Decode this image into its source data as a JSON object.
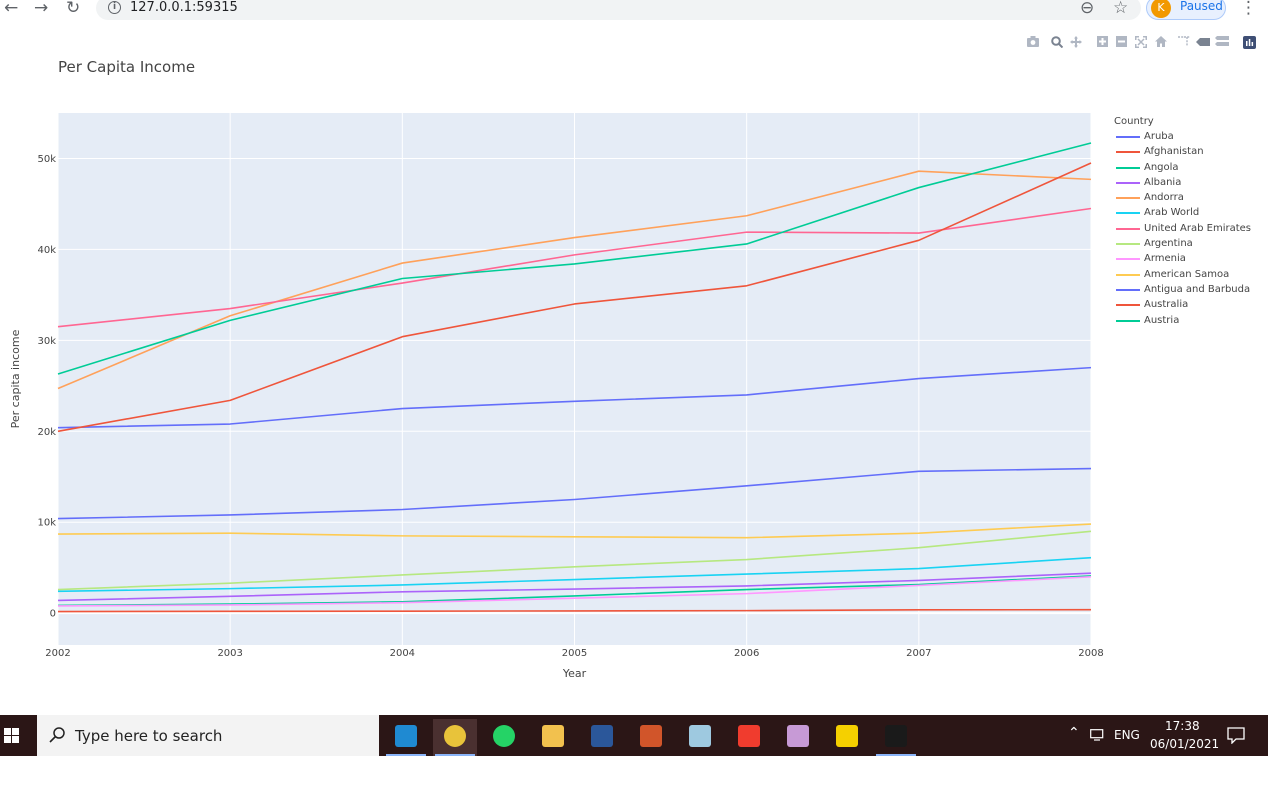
{
  "browser": {
    "back_icon": "←",
    "forward_icon": "→",
    "reload_icon": "↻",
    "url": "127.0.0.1:59315",
    "zoom_icon": "⊖",
    "star_icon": "☆",
    "profile_initial": "K",
    "profile_status": "Paused",
    "menu_icon": "⋮"
  },
  "modebar": {
    "icons": [
      "camera-icon",
      "zoom-icon",
      "pan-icon",
      "zoom-in-icon",
      "zoom-out-icon",
      "autoscale-icon",
      "reset-axes-icon",
      "spike-lines-icon",
      "hover-closest-icon",
      "hover-compare-icon",
      "plotly-logo-icon"
    ]
  },
  "chart_data": {
    "type": "line",
    "title": "Per Capita Income",
    "xlabel": "Year",
    "ylabel": "Per capita income",
    "x": [
      2002,
      2003,
      2004,
      2005,
      2006,
      2007,
      2008
    ],
    "xlim": [
      2002,
      2008
    ],
    "ylim": [
      -3500,
      55000
    ],
    "yticks": [
      0,
      10000,
      20000,
      30000,
      40000,
      50000
    ],
    "ytick_labels": [
      "0",
      "10k",
      "20k",
      "30k",
      "40k",
      "50k"
    ],
    "xtick_labels": [
      "2002",
      "2003",
      "2004",
      "2005",
      "2006",
      "2007",
      "2008"
    ],
    "legend_title": "Country",
    "legend_position": "right",
    "grid": true,
    "series": [
      {
        "name": "Aruba",
        "color": "#636efa",
        "values": [
          20400,
          20800,
          22500,
          23300,
          24000,
          25800,
          27000
        ]
      },
      {
        "name": "Afghanistan",
        "color": "#EF553B",
        "values": [
          180,
          200,
          220,
          250,
          280,
          370,
          380
        ]
      },
      {
        "name": "Angola",
        "color": "#00cc96",
        "values": [
          850,
          1000,
          1250,
          1900,
          2600,
          3150,
          4100
        ]
      },
      {
        "name": "Albania",
        "color": "#ab63fa",
        "values": [
          1400,
          1850,
          2350,
          2650,
          3000,
          3600,
          4400
        ]
      },
      {
        "name": "Andorra",
        "color": "#FFA15A",
        "values": [
          24700,
          32700,
          38500,
          41300,
          43700,
          48600,
          47700
        ]
      },
      {
        "name": "Arab World",
        "color": "#19d3f3",
        "values": [
          2400,
          2700,
          3100,
          3700,
          4300,
          4900,
          6100
        ]
      },
      {
        "name": "United Arab Emirates",
        "color": "#FF6692",
        "values": [
          31500,
          33500,
          36300,
          39400,
          41900,
          41800,
          44500
        ]
      },
      {
        "name": "Argentina",
        "color": "#B6E880",
        "values": [
          2600,
          3300,
          4200,
          5100,
          5900,
          7200,
          9000
        ]
      },
      {
        "name": "Armenia",
        "color": "#FF97FF",
        "values": [
          800,
          900,
          1150,
          1650,
          2150,
          3050,
          4000
        ]
      },
      {
        "name": "American Samoa",
        "color": "#FECB52",
        "values": [
          8700,
          8800,
          8500,
          8400,
          8300,
          8800,
          9800
        ]
      },
      {
        "name": "Antigua and Barbuda",
        "color": "#636efa",
        "values": [
          10400,
          10800,
          11400,
          12500,
          14000,
          15600,
          15900
        ]
      },
      {
        "name": "Australia",
        "color": "#EF553B",
        "values": [
          20000,
          23400,
          30400,
          34000,
          36000,
          41000,
          49500
        ]
      },
      {
        "name": "Austria",
        "color": "#00cc96",
        "values": [
          26300,
          32200,
          36800,
          38400,
          40600,
          46800,
          51700
        ]
      }
    ]
  },
  "taskbar": {
    "search_placeholder": "Type here to search",
    "time": "17:38",
    "date": "06/01/2021",
    "language": "ENG",
    "apps": [
      {
        "name": "vscode",
        "color": "#1f8ad2",
        "active": false,
        "open": true
      },
      {
        "name": "chrome",
        "color": "#e8c33a",
        "active": true,
        "open": true
      },
      {
        "name": "whatsapp",
        "color": "#25d366",
        "active": false,
        "open": false
      },
      {
        "name": "file-explorer",
        "color": "#f2c14e",
        "active": false,
        "open": false
      },
      {
        "name": "word",
        "color": "#2b579a",
        "active": false,
        "open": false
      },
      {
        "name": "git-gui",
        "color": "#d1552a",
        "active": false,
        "open": false
      },
      {
        "name": "notepad",
        "color": "#9ec9e0",
        "active": false,
        "open": false
      },
      {
        "name": "git-client",
        "color": "#f03c2e",
        "active": false,
        "open": false
      },
      {
        "name": "paint",
        "color": "#c79ad6",
        "active": false,
        "open": false
      },
      {
        "name": "sticky-notes",
        "color": "#f5d000",
        "active": false,
        "open": false
      },
      {
        "name": "terminal",
        "color": "#1a1a1a",
        "active": false,
        "open": true
      }
    ]
  }
}
